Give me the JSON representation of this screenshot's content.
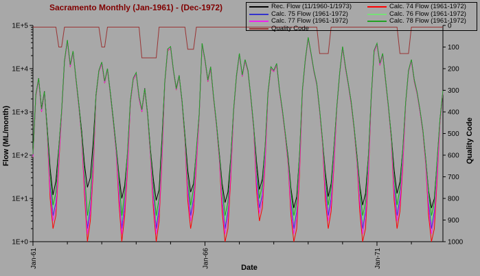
{
  "window": {
    "background": "#a8a8a8"
  },
  "chart_data": {
    "type": "line",
    "title": "Sacramento Monthly (Jan-1961) - (Dec-1972)",
    "title_color": "#800000",
    "xlabel": "Date",
    "x_axis": {
      "n_months": 144,
      "start": "Jan-1961",
      "end": "Dec-1972",
      "tick_labels": [
        "Jan-61",
        "Jan-66",
        "Jan-71"
      ],
      "tick_month_index": [
        0,
        60,
        120
      ],
      "minor_tick_every_months": 12
    },
    "y_left": {
      "label": "Flow (ML/month)",
      "scale": "log",
      "range": [
        1,
        100000
      ],
      "tick_labels": [
        "1E+0",
        "1E+1",
        "1E+2",
        "1E+3",
        "1E+4",
        "1E+5"
      ]
    },
    "y_right": {
      "label": "Quality Code",
      "scale": "linear",
      "range": [
        0,
        1000
      ],
      "orientation": "0 at top, 1000 at bottom",
      "tick_labels": [
        "0",
        "100",
        "200",
        "300",
        "400",
        "500",
        "600",
        "700",
        "800",
        "900",
        "1000"
      ]
    },
    "grid": "off",
    "legend": {
      "position": "top-right",
      "entries": [
        {
          "label": "Rec. Flow (11/1960-1/1973)",
          "color": "#000000"
        },
        {
          "label": "Calc. 74 Flow (1961-1972)",
          "color": "#ff0000"
        },
        {
          "label": "Calc. 75 Flow (1961-1972)",
          "color": "#3333cc"
        },
        {
          "label": "Calc. 76 Flow (1961-1972)",
          "color": "#77e077"
        },
        {
          "label": "Calc. 77 Flow (1961-1972)",
          "color": "#ee22ee"
        },
        {
          "label": "Calc. 78 Flow (1961-1972)",
          "color": "#22a022"
        },
        {
          "label": "Quality Code",
          "color": "#993333"
        }
      ]
    },
    "series": [
      {
        "name": "Rec. Flow (11/1960-1/1973)",
        "color": "#000000",
        "axis": "left",
        "values": [
          100,
          2500,
          6000,
          1200,
          3000,
          400,
          50,
          12,
          25,
          150,
          1000,
          15000,
          45000,
          12000,
          25000,
          6000,
          1500,
          350,
          60,
          18,
          30,
          200,
          2500,
          9000,
          14000,
          5000,
          10000,
          2800,
          700,
          160,
          35,
          10,
          20,
          120,
          1800,
          6000,
          8000,
          2200,
          1100,
          3500,
          900,
          130,
          28,
          9,
          16,
          250,
          5000,
          28000,
          32000,
          9000,
          3500,
          7000,
          1800,
          300,
          45,
          14,
          22,
          130,
          900,
          38000,
          16000,
          5500,
          11000,
          2200,
          550,
          110,
          22,
          8,
          14,
          90,
          1100,
          7000,
          22000,
          7000,
          16000,
          9000,
          2200,
          450,
          70,
          16,
          28,
          170,
          2800,
          11000,
          9000,
          13000,
          3200,
          1100,
          320,
          90,
          17,
          6,
          11,
          110,
          3200,
          16000,
          52000,
          22000,
          9000,
          4500,
          1100,
          220,
          40,
          11,
          22,
          160,
          1300,
          8000,
          32000,
          11000,
          4500,
          1700,
          450,
          100,
          20,
          7,
          13,
          100,
          2200,
          26000,
          38000,
          13000,
          22000,
          5500,
          1300,
          280,
          45,
          13,
          24,
          140,
          1600,
          9000,
          16000,
          5500,
          2800,
          1100,
          380,
          80,
          15,
          6,
          10,
          80,
          700,
          3000
        ]
      },
      {
        "name": "Calc. 74 Flow (1961-1972)",
        "color": "#ff0000",
        "axis": "left",
        "values": [
          90,
          2300,
          5500,
          1000,
          2800,
          300,
          10,
          2,
          4,
          60,
          900,
          14000,
          43000,
          11000,
          24000,
          5500,
          1300,
          250,
          12,
          1,
          3,
          40,
          2200,
          8500,
          13000,
          4600,
          9500,
          2500,
          600,
          120,
          8,
          1,
          4,
          50,
          1600,
          5600,
          7500,
          2000,
          1000,
          3200,
          800,
          90,
          6,
          1,
          3,
          80,
          4600,
          26000,
          30000,
          8500,
          3200,
          6500,
          1600,
          220,
          9,
          2,
          5,
          60,
          800,
          36000,
          15000,
          5000,
          10000,
          2000,
          480,
          80,
          5,
          1,
          2,
          30,
          1000,
          6500,
          21000,
          6600,
          15000,
          8500,
          2000,
          380,
          15,
          3,
          6,
          70,
          2600,
          10000,
          8500,
          12000,
          3000,
          1000,
          280,
          60,
          4,
          1,
          2,
          40,
          3000,
          15000,
          50000,
          21000,
          8500,
          4200,
          1000,
          180,
          9,
          2,
          5,
          60,
          1200,
          7500,
          30000,
          10000,
          4200,
          1500,
          400,
          70,
          5,
          1,
          2,
          35,
          2000,
          24000,
          36000,
          12000,
          21000,
          5000,
          1200,
          220,
          9,
          2,
          5,
          55,
          1500,
          8500,
          15000,
          5000,
          2600,
          1000,
          340,
          60,
          4,
          1,
          2,
          30,
          600,
          2800
        ]
      },
      {
        "name": "Calc. 75 Flow (1961-1972)",
        "color": "#3333cc",
        "axis": "left",
        "values": [
          95,
          2400,
          5600,
          1050,
          2850,
          320,
          20,
          4,
          8,
          90,
          950,
          14500,
          44000,
          11500,
          24500,
          5700,
          1350,
          270,
          24,
          2,
          6,
          70,
          2300,
          8700,
          13500,
          4800,
          9700,
          2600,
          620,
          130,
          16,
          2,
          8,
          80,
          1700,
          5800,
          7700,
          2100,
          1050,
          3300,
          820,
          100,
          12,
          2,
          6,
          120,
          4800,
          27000,
          31000,
          8700,
          3300,
          6700,
          1650,
          240,
          18,
          4,
          10,
          90,
          850,
          37000,
          15500,
          5200,
          10500,
          2100,
          500,
          90,
          10,
          2,
          5,
          50,
          1050,
          6700,
          21500,
          6800,
          15500,
          8700,
          2100,
          400,
          30,
          6,
          12,
          110,
          2700,
          10500,
          8700,
          12500,
          3100,
          1050,
          300,
          70,
          8,
          2,
          5,
          70,
          3100,
          15500,
          51000,
          21500,
          8700,
          4300,
          1050,
          200,
          18,
          4,
          10,
          100,
          1250,
          7700,
          31000,
          10500,
          4300,
          1600,
          420,
          80,
          10,
          2,
          5,
          60,
          2100,
          25000,
          37000,
          12500,
          21500,
          5200,
          1250,
          240,
          18,
          4,
          10,
          90,
          1550,
          8700,
          15500,
          5200,
          2700,
          1050,
          360,
          70,
          8,
          2,
          5,
          55,
          650,
          2900
        ]
      },
      {
        "name": "Calc. 76 Flow (1961-1972)",
        "color": "#77e077",
        "axis": "left",
        "values": [
          100,
          2450,
          5700,
          1100,
          2900,
          330,
          30,
          6,
          12,
          130,
          980,
          14800,
          44500,
          11700,
          24800,
          5800,
          1400,
          280,
          36,
          3,
          9,
          100,
          2350,
          8800,
          13700,
          4900,
          9800,
          2650,
          640,
          140,
          24,
          3,
          12,
          120,
          1750,
          5900,
          7800,
          2150,
          1080,
          3350,
          840,
          110,
          18,
          3,
          9,
          170,
          4900,
          27500,
          31500,
          8800,
          3350,
          6800,
          1700,
          250,
          27,
          6,
          15,
          130,
          870,
          37500,
          15700,
          5300,
          10700,
          2150,
          520,
          95,
          15,
          3,
          7,
          70,
          1080,
          6800,
          21800,
          6900,
          15700,
          8800,
          2150,
          420,
          45,
          9,
          18,
          160,
          2750,
          10700,
          8800,
          12700,
          3150,
          1080,
          310,
          75,
          12,
          3,
          7,
          100,
          3150,
          15700,
          51500,
          21800,
          8800,
          4400,
          1080,
          210,
          27,
          6,
          15,
          140,
          1280,
          7800,
          31500,
          10700,
          4400,
          1650,
          430,
          85,
          15,
          3,
          7,
          90,
          2150,
          25500,
          37500,
          12700,
          21800,
          5300,
          1280,
          250,
          27,
          6,
          15,
          130,
          1580,
          8800,
          15700,
          5300,
          2750,
          1080,
          370,
          75,
          12,
          3,
          7,
          80,
          680,
          2950
        ]
      },
      {
        "name": "Calc. 77 Flow (1961-1972)",
        "color": "#ee22ee",
        "axis": "left",
        "values": [
          92,
          2350,
          5550,
          1020,
          2820,
          310,
          15,
          3,
          6,
          75,
          920,
          14200,
          43500,
          11200,
          24200,
          5600,
          1320,
          260,
          18,
          1.5,
          4.5,
          55,
          2250,
          8600,
          13200,
          4700,
          9600,
          2550,
          610,
          125,
          12,
          1.5,
          6,
          65,
          1650,
          5700,
          7600,
          2050,
          1020,
          3250,
          810,
          95,
          9,
          1.5,
          4.5,
          100,
          4700,
          26500,
          30500,
          8600,
          3250,
          6600,
          1620,
          230,
          14,
          3,
          7.5,
          75,
          820,
          36500,
          15200,
          5100,
          10200,
          2050,
          490,
          85,
          8,
          1.5,
          3.5,
          40,
          1020,
          6600,
          21200,
          6700,
          15200,
          8600,
          2050,
          390,
          22,
          4.5,
          9,
          85,
          2650,
          10200,
          8600,
          12200,
          3050,
          1020,
          290,
          65,
          6,
          1.5,
          3.5,
          55,
          3050,
          15200,
          50500,
          21200,
          8600,
          4250,
          1020,
          190,
          14,
          3,
          7.5,
          75,
          1220,
          7600,
          30500,
          10200,
          4250,
          1550,
          410,
          75,
          8,
          1.5,
          3.5,
          45,
          2050,
          24500,
          36500,
          12200,
          21200,
          5100,
          1220,
          230,
          14,
          3,
          7.5,
          70,
          1520,
          8600,
          15200,
          5100,
          2650,
          1020,
          350,
          65,
          6,
          1.5,
          3.5,
          40,
          620,
          2850
        ]
      },
      {
        "name": "Calc. 78 Flow (1961-1972)",
        "color": "#22a022",
        "axis": "left",
        "values": [
          105,
          2550,
          5900,
          1150,
          2950,
          340,
          35,
          7,
          14,
          140,
          1000,
          15200,
          46000,
          12200,
          25500,
          5900,
          1450,
          290,
          40,
          4,
          10,
          110,
          2400,
          9000,
          14200,
          5100,
          10000,
          2700,
          660,
          150,
          28,
          4,
          14,
          130,
          1800,
          6100,
          8100,
          2250,
          1120,
          3400,
          860,
          115,
          20,
          4,
          10,
          190,
          5000,
          28500,
          32500,
          9100,
          3400,
          6900,
          1750,
          260,
          30,
          7,
          17,
          140,
          900,
          38500,
          16200,
          5400,
          11000,
          2200,
          540,
          100,
          17,
          4,
          8,
          80,
          1120,
          6900,
          22500,
          7100,
          16200,
          9000,
          2200,
          440,
          50,
          10,
          20,
          175,
          2850,
          11000,
          9100,
          13200,
          3250,
          1120,
          320,
          80,
          14,
          4,
          8,
          110,
          3250,
          16200,
          53000,
          22500,
          9100,
          4500,
          1120,
          220,
          30,
          7,
          17,
          150,
          1320,
          8100,
          32500,
          11000,
          4500,
          1700,
          440,
          90,
          17,
          4,
          8,
          95,
          2200,
          26500,
          38500,
          13200,
          22500,
          5400,
          1320,
          260,
          30,
          7,
          17,
          140,
          1620,
          9100,
          16200,
          5400,
          2850,
          1120,
          380,
          80,
          14,
          4,
          8,
          85,
          700,
          3050
        ]
      },
      {
        "name": "Quality Code",
        "color": "#993333",
        "axis": "right",
        "values": [
          8,
          8,
          8,
          8,
          8,
          8,
          8,
          8,
          8,
          100,
          100,
          8,
          8,
          8,
          8,
          8,
          8,
          8,
          8,
          8,
          8,
          8,
          8,
          8,
          100,
          100,
          8,
          8,
          8,
          8,
          8,
          8,
          8,
          8,
          8,
          8,
          8,
          8,
          150,
          150,
          150,
          150,
          150,
          150,
          8,
          8,
          8,
          8,
          8,
          8,
          8,
          8,
          8,
          8,
          110,
          110,
          110,
          8,
          8,
          8,
          8,
          8,
          8,
          8,
          8,
          8,
          8,
          8,
          8,
          8,
          8,
          8,
          8,
          8,
          8,
          8,
          8,
          8,
          8,
          8,
          8,
          8,
          8,
          8,
          8,
          8,
          8,
          8,
          8,
          8,
          8,
          8,
          8,
          8,
          8,
          8,
          8,
          8,
          8,
          8,
          130,
          130,
          130,
          130,
          8,
          8,
          8,
          8,
          8,
          8,
          8,
          8,
          8,
          8,
          8,
          8,
          8,
          8,
          8,
          8,
          8,
          8,
          8,
          8,
          8,
          8,
          8,
          8,
          130,
          130,
          130,
          130,
          8,
          8,
          8,
          8,
          8,
          8,
          8,
          8,
          8,
          8,
          8,
          8
        ]
      }
    ]
  }
}
